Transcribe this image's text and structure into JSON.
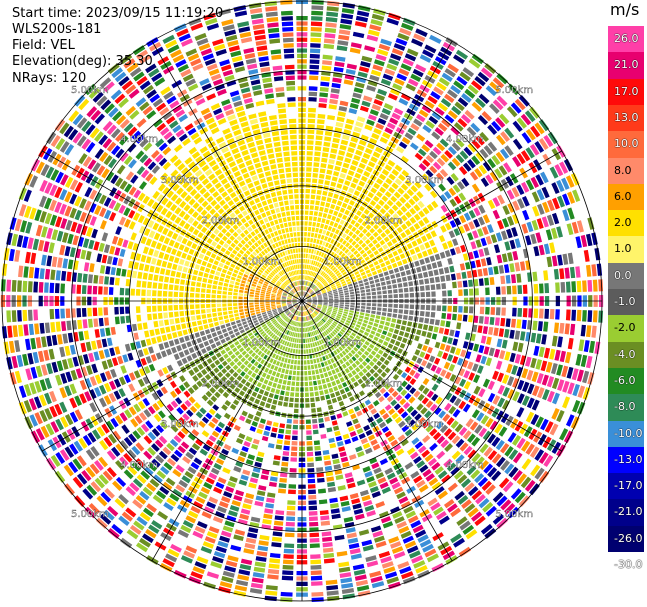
{
  "info": {
    "start_time": "Start time: 2023/09/15 11:19:20",
    "site": "WLS200s-181",
    "field": "Field: VEL",
    "elevation": "Elevation(deg): 35.30",
    "nrays": "NRays: 120"
  },
  "colorbar": {
    "unit": "m/s",
    "ticks": [
      "26.0",
      "21.0",
      "17.0",
      "13.0",
      "10.0",
      "8.0",
      "6.0",
      "2.0",
      "1.0",
      "0.0",
      "-1.0",
      "-2.0",
      "-4.0",
      "-6.0",
      "-8.0",
      "-10.0",
      "-13.0",
      "-17.0",
      "-21.0",
      "-26.0",
      "-30.0"
    ],
    "colors": [
      "#ff3fa8",
      "#e8006f",
      "#ff0a0a",
      "#ff3a1a",
      "#ff6a3c",
      "#ff8a6a",
      "#ffa000",
      "#ffe000",
      "#fff46a",
      "#777777",
      "#5c5c5c",
      "#9acd32",
      "#6b8e23",
      "#228b22",
      "#2e8b57",
      "#3a8fd8",
      "#0000ff",
      "#0000b0",
      "#00008b",
      "#000070"
    ]
  },
  "chart_data": {
    "type": "heatmap",
    "title": "",
    "projection": "polar PPI",
    "field": "VEL",
    "units": "m/s",
    "range_ring_labels": [
      "1.00km",
      "2.00km",
      "3.00km",
      "4.00km",
      "5.00km"
    ],
    "range_rings_km": [
      1,
      2,
      3,
      4,
      5
    ],
    "max_range_km": 5.0,
    "nrays": 120,
    "azimuth_spokes_deg": [
      0,
      30,
      60,
      90,
      120,
      150,
      180,
      210,
      240,
      270,
      300,
      330
    ],
    "regions": [
      {
        "description": "near-field negative velocities (south/east)",
        "range_km": [
          0,
          3.0
        ],
        "value_ms": -2.0
      },
      {
        "description": "near-field positive velocities (north/west)",
        "range_km": [
          0,
          3.2
        ],
        "value_ms": 2.0
      },
      {
        "description": "near-zero band",
        "range_km": [
          0.2,
          2.6
        ],
        "value_ms": 0.0
      },
      {
        "description": "noise beyond signal range",
        "range_km": [
          3.0,
          5.0
        ],
        "value_ms": null
      }
    ]
  }
}
